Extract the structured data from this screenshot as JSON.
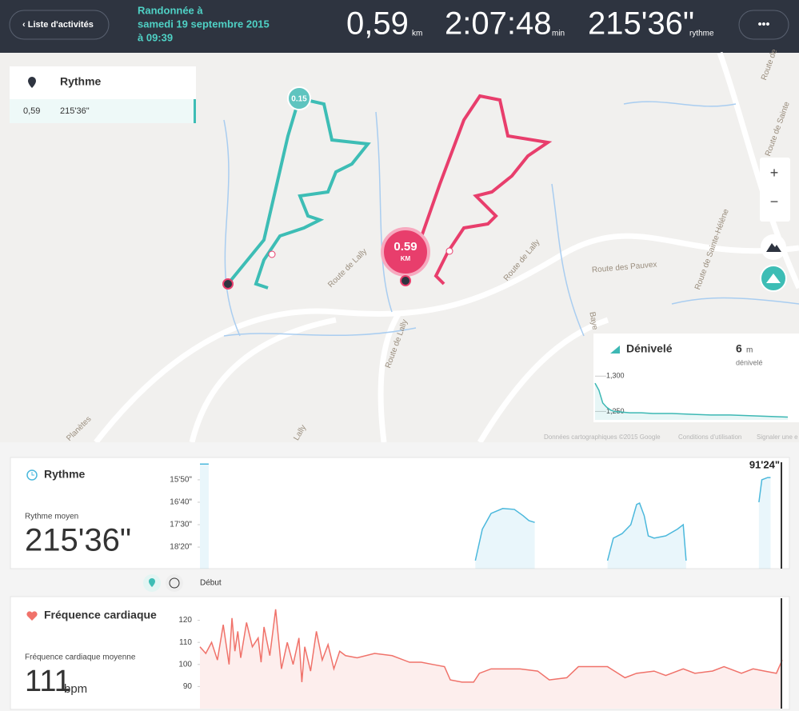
{
  "header": {
    "back": "‹ Liste d'activités",
    "title_lines": [
      "Randonnée à",
      "samedi 19 septembre 2015",
      "à 09:39"
    ],
    "stats": [
      {
        "value": "0,59",
        "unit": "km"
      },
      {
        "value": "2:07:48",
        "unit": "min"
      },
      {
        "value": "215'36\"",
        "unit": "rythme"
      }
    ],
    "menu": "•••"
  },
  "map": {
    "panel": {
      "title": "Rythme",
      "row": [
        "0,59",
        "215'36\""
      ]
    },
    "markers": {
      "start": "0.15",
      "end": "0.59",
      "end_unit": "KM"
    },
    "roads": [
      "Route de Lally",
      "Route de Lally",
      "Route de Lally",
      "Route des Pauvex",
      "Route de Sainte-Hélène",
      "Route de Sainte",
      "Route de",
      "Baye",
      "Planètes",
      "Lally"
    ],
    "zoom": [
      "+",
      "−"
    ],
    "attribution": [
      "Données cartographiques ©2015 Google",
      "Conditions d'utilisation",
      "Signaler une e"
    ]
  },
  "elevation": {
    "type": "area",
    "title": "Dénivelé",
    "value": "6",
    "unit": "m",
    "caption": "dénivelé",
    "x": [
      0,
      2,
      4,
      6,
      8,
      10,
      14,
      18,
      24,
      30,
      40,
      50,
      60,
      70,
      80,
      90,
      100
    ],
    "values": [
      1290,
      1280,
      1262,
      1256,
      1252,
      1250,
      1249,
      1248,
      1248,
      1247,
      1247,
      1246,
      1245,
      1245,
      1244,
      1243,
      1242
    ],
    "xlim": [
      0,
      100
    ],
    "ylim": [
      1238,
      1306
    ],
    "yticks": [
      {
        "value": 1300,
        "label": "1,300"
      },
      {
        "value": 1250,
        "label": "1,250"
      }
    ],
    "color": "#3db8b4"
  },
  "pace": {
    "type": "area",
    "title": "Rythme",
    "caption": "Rythme moyen",
    "average": "215'36\"",
    "annotation": "91'24\"",
    "x": [
      0,
      1.5,
      2,
      47.3,
      48.5,
      50,
      52,
      54,
      55.5,
      56.5,
      57.5,
      58,
      70,
      71,
      72.5,
      74,
      75,
      75.5,
      76.3,
      77,
      78,
      80,
      82,
      83,
      83.5,
      84,
      96,
      96.5,
      97.5,
      98
    ],
    "values": [
      915,
      915,
      null,
      1130,
      1060,
      1025,
      1014,
      1016,
      1030,
      1041,
      1045,
      null,
      1130,
      1080,
      1070,
      1050,
      1005,
      1002,
      1030,
      1075,
      1080,
      1075,
      1060,
      1050,
      1130,
      null,
      1000,
      950,
      945,
      945
    ],
    "xlim": [
      0,
      100
    ],
    "ylim": [
      1148,
      911
    ],
    "yticks": [
      {
        "value": 950,
        "label": "15'50\""
      },
      {
        "value": 1000,
        "label": "16'40\""
      },
      {
        "value": 1050,
        "label": "17'30\""
      },
      {
        "value": 1100,
        "label": "18'20\""
      }
    ],
    "color": "#4bb8dc"
  },
  "toggle": {
    "label": "Début"
  },
  "heart": {
    "type": "area",
    "title": "Fréquence cardiaque",
    "caption": "Fréquence cardiaque moyenne",
    "average": "111",
    "unit": "bpm",
    "x": [
      0,
      1,
      2,
      3,
      4,
      5,
      5.5,
      6,
      6.5,
      7,
      8,
      9,
      10,
      10.5,
      11,
      12,
      13,
      14,
      15,
      16,
      17,
      17.5,
      18,
      19,
      20,
      21,
      22,
      23,
      24,
      25,
      27,
      30,
      33,
      36,
      38,
      40,
      42,
      43,
      45,
      47,
      48,
      50,
      55,
      58,
      60,
      63,
      65,
      70,
      73,
      75,
      78,
      80,
      83,
      85,
      88,
      90,
      93,
      95,
      97,
      99,
      100
    ],
    "values": [
      108,
      105,
      110,
      102,
      118,
      100,
      121,
      106,
      115,
      103,
      119,
      108,
      112,
      101,
      117,
      104,
      125,
      98,
      110,
      100,
      112,
      92,
      108,
      97,
      115,
      102,
      109,
      98,
      106,
      104,
      103,
      105,
      104,
      101,
      101,
      100,
      99,
      93,
      92,
      92,
      96,
      98,
      98,
      97,
      93,
      94,
      99,
      99,
      94,
      96,
      97,
      95,
      98,
      96,
      97,
      99,
      96,
      98,
      97,
      96,
      102
    ],
    "xlim": [
      0,
      100
    ],
    "ylim": [
      80,
      130
    ],
    "yticks": [
      120,
      110,
      100,
      90
    ],
    "color": "#f0726a"
  }
}
